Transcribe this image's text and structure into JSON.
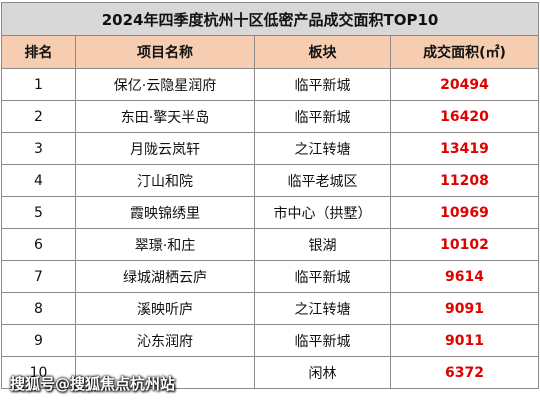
{
  "title": "2024年四季度杭州十区低密产品成交面积TOP10",
  "headers": {
    "rank": "排名",
    "name": "项目名称",
    "block": "板块",
    "area": "成交面积(㎡)"
  },
  "rows": [
    {
      "rank": "1",
      "name": "保亿·云隐星润府",
      "block": "临平新城",
      "area": "20494"
    },
    {
      "rank": "2",
      "name": "东田·擎天半岛",
      "block": "临平新城",
      "area": "16420"
    },
    {
      "rank": "3",
      "name": "月陇云岚轩",
      "block": "之江转塘",
      "area": "13419"
    },
    {
      "rank": "4",
      "name": "汀山和院",
      "block": "临平老城区",
      "area": "11208"
    },
    {
      "rank": "5",
      "name": "霞映锦绣里",
      "block": "市中心（拱墅）",
      "area": "10969"
    },
    {
      "rank": "6",
      "name": "翠璟·和庄",
      "block": "银湖",
      "area": "10102"
    },
    {
      "rank": "7",
      "name": "绿城湖栖云庐",
      "block": "临平新城",
      "area": "9614"
    },
    {
      "rank": "8",
      "name": "溪映听庐",
      "block": "之江转塘",
      "area": "9091"
    },
    {
      "rank": "9",
      "name": "沁东润府",
      "block": "临平新城",
      "area": "9011"
    },
    {
      "rank": "10",
      "name": "",
      "block": "闲林",
      "area": "6372"
    }
  ],
  "watermark": "搜狐号@搜狐焦点杭州站",
  "colors": {
    "title_bg": "#d8d8d8",
    "header_bg": "#f6cdb0",
    "area_text": "#e00000"
  }
}
